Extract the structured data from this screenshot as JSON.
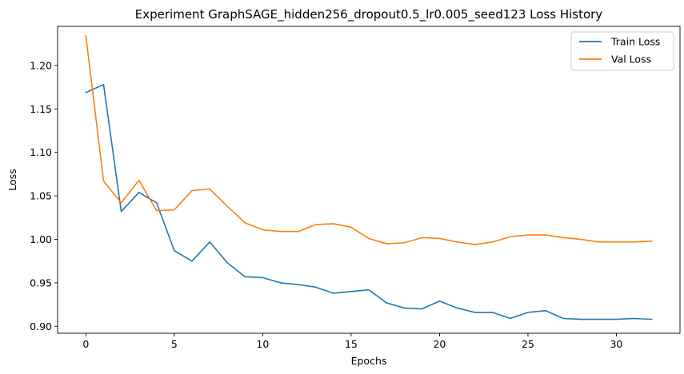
{
  "chart_data": {
    "type": "line",
    "title": "Experiment GraphSAGE_hidden256_dropout0.5_lr0.005_seed123 Loss History",
    "xlabel": "Epochs",
    "ylabel": "Loss",
    "xlim": [
      -1.6,
      33.6
    ],
    "ylim": [
      0.892,
      1.245
    ],
    "xticks": [
      0,
      5,
      10,
      15,
      20,
      25,
      30
    ],
    "yticks": [
      0.9,
      0.95,
      1.0,
      1.05,
      1.1,
      1.15,
      1.2
    ],
    "grid": false,
    "legend_position": "top-right",
    "x": [
      0,
      1,
      2,
      3,
      4,
      5,
      6,
      7,
      8,
      9,
      10,
      11,
      12,
      13,
      14,
      15,
      16,
      17,
      18,
      19,
      20,
      21,
      22,
      23,
      24,
      25,
      26,
      27,
      28,
      29,
      30,
      31,
      32
    ],
    "series": [
      {
        "name": "Train Loss",
        "color": "#1f77b4",
        "values": [
          1.169,
          1.178,
          1.032,
          1.054,
          1.042,
          0.987,
          0.975,
          0.997,
          0.973,
          0.957,
          0.956,
          0.95,
          0.948,
          0.945,
          0.938,
          0.94,
          0.942,
          0.927,
          0.921,
          0.92,
          0.929,
          0.921,
          0.916,
          0.916,
          0.909,
          0.916,
          0.918,
          0.909,
          0.908,
          0.908,
          0.908,
          0.909,
          0.908
        ]
      },
      {
        "name": "Val Loss",
        "color": "#ff7f0e",
        "values": [
          1.234,
          1.067,
          1.042,
          1.068,
          1.033,
          1.034,
          1.056,
          1.058,
          1.038,
          1.019,
          1.011,
          1.009,
          1.009,
          1.017,
          1.018,
          1.014,
          1.001,
          0.995,
          0.996,
          1.002,
          1.001,
          0.997,
          0.994,
          0.997,
          1.003,
          1.005,
          1.005,
          1.002,
          1.0,
          0.997,
          0.997,
          0.997,
          0.998
        ]
      }
    ]
  }
}
